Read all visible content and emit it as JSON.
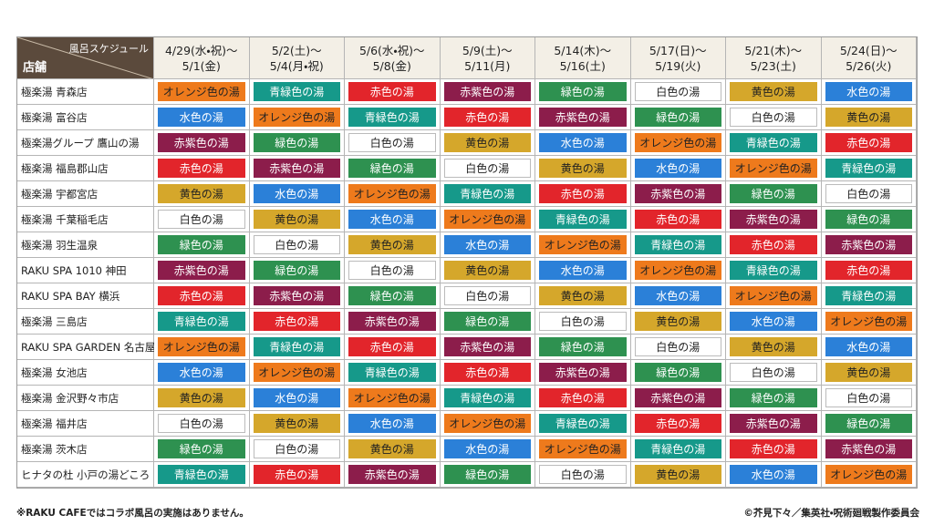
{
  "table": {
    "corner": {
      "top": "風呂スケジュール",
      "bottom": "店舗"
    },
    "columns": [
      {
        "start": "4/29(水・祝)～",
        "end": "5/1(金)"
      },
      {
        "start": "5/2(土)～",
        "end": "5/4(月・祝)"
      },
      {
        "start": "5/6(水・祝)～",
        "end": "5/8(金)"
      },
      {
        "start": "5/9(土)～",
        "end": "5/11(月)"
      },
      {
        "start": "5/14(木)～",
        "end": "5/16(土)"
      },
      {
        "start": "5/17(日)～",
        "end": "5/19(火)"
      },
      {
        "start": "5/21(木)～",
        "end": "5/23(土)"
      },
      {
        "start": "5/24(日)～",
        "end": "5/26(火)"
      }
    ],
    "rows": [
      {
        "store": "極楽湯 青森店",
        "cells": [
          {
            "label": "オレンジ色の湯",
            "color": "#ee7a1c"
          },
          {
            "label": "青緑色の湯",
            "color": "#16998a"
          },
          {
            "label": "赤色の湯",
            "color": "#e2252b"
          },
          {
            "label": "赤紫色の湯",
            "color": "#8c1d4b"
          },
          {
            "label": "緑色の湯",
            "color": "#2e9150"
          },
          {
            "label": "白色の湯",
            "color": "#ffffff"
          },
          {
            "label": "黄色の湯",
            "color": "#d5a72b"
          },
          {
            "label": "水色の湯",
            "color": "#2b80d8"
          }
        ]
      },
      {
        "store": "極楽湯 富谷店",
        "cells": [
          {
            "label": "水色の湯",
            "color": "#2b80d8"
          },
          {
            "label": "オレンジ色の湯",
            "color": "#ee7a1c"
          },
          {
            "label": "青緑色の湯",
            "color": "#16998a"
          },
          {
            "label": "赤色の湯",
            "color": "#e2252b"
          },
          {
            "label": "赤紫色の湯",
            "color": "#8c1d4b"
          },
          {
            "label": "緑色の湯",
            "color": "#2e9150"
          },
          {
            "label": "白色の湯",
            "color": "#ffffff"
          },
          {
            "label": "黄色の湯",
            "color": "#d5a72b"
          }
        ]
      },
      {
        "store": "極楽湯グループ 鷹山の湯",
        "cells": [
          {
            "label": "赤紫色の湯",
            "color": "#8c1d4b"
          },
          {
            "label": "緑色の湯",
            "color": "#2e9150"
          },
          {
            "label": "白色の湯",
            "color": "#ffffff"
          },
          {
            "label": "黄色の湯",
            "color": "#d5a72b"
          },
          {
            "label": "水色の湯",
            "color": "#2b80d8"
          },
          {
            "label": "オレンジ色の湯",
            "color": "#ee7a1c"
          },
          {
            "label": "青緑色の湯",
            "color": "#16998a"
          },
          {
            "label": "赤色の湯",
            "color": "#e2252b"
          }
        ]
      },
      {
        "store": "極楽湯 福島郡山店",
        "cells": [
          {
            "label": "赤色の湯",
            "color": "#e2252b"
          },
          {
            "label": "赤紫色の湯",
            "color": "#8c1d4b"
          },
          {
            "label": "緑色の湯",
            "color": "#2e9150"
          },
          {
            "label": "白色の湯",
            "color": "#ffffff"
          },
          {
            "label": "黄色の湯",
            "color": "#d5a72b"
          },
          {
            "label": "水色の湯",
            "color": "#2b80d8"
          },
          {
            "label": "オレンジ色の湯",
            "color": "#ee7a1c"
          },
          {
            "label": "青緑色の湯",
            "color": "#16998a"
          }
        ]
      },
      {
        "store": "極楽湯 宇都宮店",
        "cells": [
          {
            "label": "黄色の湯",
            "color": "#d5a72b"
          },
          {
            "label": "水色の湯",
            "color": "#2b80d8"
          },
          {
            "label": "オレンジ色の湯",
            "color": "#ee7a1c"
          },
          {
            "label": "青緑色の湯",
            "color": "#16998a"
          },
          {
            "label": "赤色の湯",
            "color": "#e2252b"
          },
          {
            "label": "赤紫色の湯",
            "color": "#8c1d4b"
          },
          {
            "label": "緑色の湯",
            "color": "#2e9150"
          },
          {
            "label": "白色の湯",
            "color": "#ffffff"
          }
        ]
      },
      {
        "store": "極楽湯 千葉稲毛店",
        "cells": [
          {
            "label": "白色の湯",
            "color": "#ffffff"
          },
          {
            "label": "黄色の湯",
            "color": "#d5a72b"
          },
          {
            "label": "水色の湯",
            "color": "#2b80d8"
          },
          {
            "label": "オレンジ色の湯",
            "color": "#ee7a1c"
          },
          {
            "label": "青緑色の湯",
            "color": "#16998a"
          },
          {
            "label": "赤色の湯",
            "color": "#e2252b"
          },
          {
            "label": "赤紫色の湯",
            "color": "#8c1d4b"
          },
          {
            "label": "緑色の湯",
            "color": "#2e9150"
          }
        ]
      },
      {
        "store": "極楽湯 羽生温泉",
        "cells": [
          {
            "label": "緑色の湯",
            "color": "#2e9150"
          },
          {
            "label": "白色の湯",
            "color": "#ffffff"
          },
          {
            "label": "黄色の湯",
            "color": "#d5a72b"
          },
          {
            "label": "水色の湯",
            "color": "#2b80d8"
          },
          {
            "label": "オレンジ色の湯",
            "color": "#ee7a1c"
          },
          {
            "label": "青緑色の湯",
            "color": "#16998a"
          },
          {
            "label": "赤色の湯",
            "color": "#e2252b"
          },
          {
            "label": "赤紫色の湯",
            "color": "#8c1d4b"
          }
        ]
      },
      {
        "store": "RAKU SPA 1010 神田",
        "cells": [
          {
            "label": "赤紫色の湯",
            "color": "#8c1d4b"
          },
          {
            "label": "緑色の湯",
            "color": "#2e9150"
          },
          {
            "label": "白色の湯",
            "color": "#ffffff"
          },
          {
            "label": "黄色の湯",
            "color": "#d5a72b"
          },
          {
            "label": "水色の湯",
            "color": "#2b80d8"
          },
          {
            "label": "オレンジ色の湯",
            "color": "#ee7a1c"
          },
          {
            "label": "青緑色の湯",
            "color": "#16998a"
          },
          {
            "label": "赤色の湯",
            "color": "#e2252b"
          }
        ]
      },
      {
        "store": "RAKU SPA BAY 横浜",
        "cells": [
          {
            "label": "赤色の湯",
            "color": "#e2252b"
          },
          {
            "label": "赤紫色の湯",
            "color": "#8c1d4b"
          },
          {
            "label": "緑色の湯",
            "color": "#2e9150"
          },
          {
            "label": "白色の湯",
            "color": "#ffffff"
          },
          {
            "label": "黄色の湯",
            "color": "#d5a72b"
          },
          {
            "label": "水色の湯",
            "color": "#2b80d8"
          },
          {
            "label": "オレンジ色の湯",
            "color": "#ee7a1c"
          },
          {
            "label": "青緑色の湯",
            "color": "#16998a"
          }
        ]
      },
      {
        "store": "極楽湯 三島店",
        "cells": [
          {
            "label": "青緑色の湯",
            "color": "#16998a"
          },
          {
            "label": "赤色の湯",
            "color": "#e2252b"
          },
          {
            "label": "赤紫色の湯",
            "color": "#8c1d4b"
          },
          {
            "label": "緑色の湯",
            "color": "#2e9150"
          },
          {
            "label": "白色の湯",
            "color": "#ffffff"
          },
          {
            "label": "黄色の湯",
            "color": "#d5a72b"
          },
          {
            "label": "水色の湯",
            "color": "#2b80d8"
          },
          {
            "label": "オレンジ色の湯",
            "color": "#ee7a1c"
          }
        ]
      },
      {
        "store": "RAKU SPA GARDEN 名古屋",
        "cells": [
          {
            "label": "オレンジ色の湯",
            "color": "#ee7a1c"
          },
          {
            "label": "青緑色の湯",
            "color": "#16998a"
          },
          {
            "label": "赤色の湯",
            "color": "#e2252b"
          },
          {
            "label": "赤紫色の湯",
            "color": "#8c1d4b"
          },
          {
            "label": "緑色の湯",
            "color": "#2e9150"
          },
          {
            "label": "白色の湯",
            "color": "#ffffff"
          },
          {
            "label": "黄色の湯",
            "color": "#d5a72b"
          },
          {
            "label": "水色の湯",
            "color": "#2b80d8"
          }
        ]
      },
      {
        "store": "極楽湯 女池店",
        "cells": [
          {
            "label": "水色の湯",
            "color": "#2b80d8"
          },
          {
            "label": "オレンジ色の湯",
            "color": "#ee7a1c"
          },
          {
            "label": "青緑色の湯",
            "color": "#16998a"
          },
          {
            "label": "赤色の湯",
            "color": "#e2252b"
          },
          {
            "label": "赤紫色の湯",
            "color": "#8c1d4b"
          },
          {
            "label": "緑色の湯",
            "color": "#2e9150"
          },
          {
            "label": "白色の湯",
            "color": "#ffffff"
          },
          {
            "label": "黄色の湯",
            "color": "#d5a72b"
          }
        ]
      },
      {
        "store": "極楽湯 金沢野々市店",
        "cells": [
          {
            "label": "黄色の湯",
            "color": "#d5a72b"
          },
          {
            "label": "水色の湯",
            "color": "#2b80d8"
          },
          {
            "label": "オレンジ色の湯",
            "color": "#ee7a1c"
          },
          {
            "label": "青緑色の湯",
            "color": "#16998a"
          },
          {
            "label": "赤色の湯",
            "color": "#e2252b"
          },
          {
            "label": "赤紫色の湯",
            "color": "#8c1d4b"
          },
          {
            "label": "緑色の湯",
            "color": "#2e9150"
          },
          {
            "label": "白色の湯",
            "color": "#ffffff"
          }
        ]
      },
      {
        "store": "極楽湯 福井店",
        "cells": [
          {
            "label": "白色の湯",
            "color": "#ffffff"
          },
          {
            "label": "黄色の湯",
            "color": "#d5a72b"
          },
          {
            "label": "水色の湯",
            "color": "#2b80d8"
          },
          {
            "label": "オレンジ色の湯",
            "color": "#ee7a1c"
          },
          {
            "label": "青緑色の湯",
            "color": "#16998a"
          },
          {
            "label": "赤色の湯",
            "color": "#e2252b"
          },
          {
            "label": "赤紫色の湯",
            "color": "#8c1d4b"
          },
          {
            "label": "緑色の湯",
            "color": "#2e9150"
          }
        ]
      },
      {
        "store": "極楽湯 茨木店",
        "cells": [
          {
            "label": "緑色の湯",
            "color": "#2e9150"
          },
          {
            "label": "白色の湯",
            "color": "#ffffff"
          },
          {
            "label": "黄色の湯",
            "color": "#d5a72b"
          },
          {
            "label": "水色の湯",
            "color": "#2b80d8"
          },
          {
            "label": "オレンジ色の湯",
            "color": "#ee7a1c"
          },
          {
            "label": "青緑色の湯",
            "color": "#16998a"
          },
          {
            "label": "赤色の湯",
            "color": "#e2252b"
          },
          {
            "label": "赤紫色の湯",
            "color": "#8c1d4b"
          }
        ]
      },
      {
        "store": "ヒナタの杜 小戸の湯どころ",
        "cells": [
          {
            "label": "青緑色の湯",
            "color": "#16998a"
          },
          {
            "label": "赤色の湯",
            "color": "#e2252b"
          },
          {
            "label": "赤紫色の湯",
            "color": "#8c1d4b"
          },
          {
            "label": "緑色の湯",
            "color": "#2e9150"
          },
          {
            "label": "白色の湯",
            "color": "#ffffff"
          },
          {
            "label": "黄色の湯",
            "color": "#d5a72b"
          },
          {
            "label": "水色の湯",
            "color": "#2b80d8"
          },
          {
            "label": "オレンジ色の湯",
            "color": "#ee7a1c"
          }
        ]
      }
    ]
  },
  "footer": {
    "note": "※RAKU CAFEではコラボ風呂の実施はありません。",
    "copyright": "©芥見下々／集英社・呪術廻戦製作委員会"
  }
}
